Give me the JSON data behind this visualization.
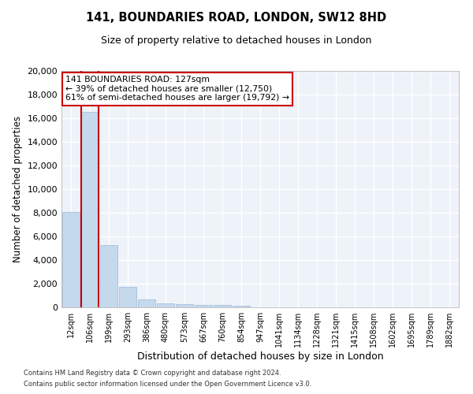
{
  "title": "141, BOUNDARIES ROAD, LONDON, SW12 8HD",
  "subtitle": "Size of property relative to detached houses in London",
  "xlabel": "Distribution of detached houses by size in London",
  "ylabel": "Number of detached properties",
  "bar_color": "#c5d9ed",
  "bar_edge_color": "#9ab8d4",
  "highlight_color": "#cc0000",
  "background_color": "#eef2f9",
  "grid_color": "#ffffff",
  "categories": [
    "12sqm",
    "106sqm",
    "199sqm",
    "293sqm",
    "386sqm",
    "480sqm",
    "573sqm",
    "667sqm",
    "760sqm",
    "854sqm",
    "947sqm",
    "1041sqm",
    "1134sqm",
    "1228sqm",
    "1321sqm",
    "1415sqm",
    "1508sqm",
    "1602sqm",
    "1695sqm",
    "1789sqm",
    "1882sqm"
  ],
  "bar_heights": [
    8100,
    16500,
    5300,
    1750,
    650,
    350,
    270,
    220,
    180,
    130,
    0,
    0,
    0,
    0,
    0,
    0,
    0,
    0,
    0,
    0,
    0
  ],
  "ylim": [
    0,
    20000
  ],
  "yticks": [
    0,
    2000,
    4000,
    6000,
    8000,
    10000,
    12000,
    14000,
    16000,
    18000,
    20000
  ],
  "property_bin_index": 1,
  "annotation_text": "141 BOUNDARIES ROAD: 127sqm\n← 39% of detached houses are smaller (12,750)\n61% of semi-detached houses are larger (19,792) →",
  "annotation_box_color": "#ffffff",
  "annotation_box_edge": "#cc0000",
  "footer_line1": "Contains HM Land Registry data © Crown copyright and database right 2024.",
  "footer_line2": "Contains public sector information licensed under the Open Government Licence v3.0."
}
